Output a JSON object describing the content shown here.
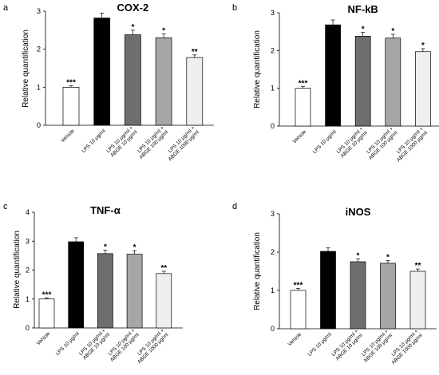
{
  "chart_data": [
    {
      "panel": "a",
      "type": "bar",
      "title": "COX-2",
      "ylabel": "Relative quantification",
      "ylim": [
        0,
        3
      ],
      "yticks": [
        0,
        1,
        2,
        3
      ],
      "categories": [
        [
          "Vehicle"
        ],
        [
          "LPS 10 μg/ml"
        ],
        [
          "LPS 10 μg/ml +",
          "ABGE 10 μg/ml"
        ],
        [
          "LPS 10 μg/ml +",
          "ABGE 100 μg/ml"
        ],
        [
          "LPS 10 μg/ml +",
          "ABGE 1000 μg/ml"
        ]
      ],
      "values": [
        1.0,
        2.82,
        2.38,
        2.3,
        1.78
      ],
      "errors": [
        0.04,
        0.13,
        0.12,
        0.1,
        0.07
      ],
      "significance": [
        "***",
        "",
        "*",
        "*",
        "**"
      ],
      "colors": [
        "#ffffff",
        "#000000",
        "#6e6e6e",
        "#a6a6a6",
        "#efefef"
      ],
      "grid": false
    },
    {
      "panel": "b",
      "type": "bar",
      "title": "NF-kB",
      "ylabel": "Relative quantification",
      "ylim": [
        0,
        3
      ],
      "yticks": [
        0,
        1,
        2,
        3
      ],
      "categories": [
        [
          "Vehicle"
        ],
        [
          "LPS 10 μg/ml"
        ],
        [
          "LPS 10 μg/ml +",
          "ABGE 10 μg/ml"
        ],
        [
          "LPS 10 μg/ml +",
          "ABGE 100 μg/ml"
        ],
        [
          "LPS 10 μg/ml +",
          "ABGE 1000 μg/ml"
        ]
      ],
      "values": [
        1.0,
        2.68,
        2.38,
        2.33,
        1.97
      ],
      "errors": [
        0.05,
        0.13,
        0.1,
        0.1,
        0.08
      ],
      "significance": [
        "***",
        "",
        "*",
        "*",
        "*"
      ],
      "colors": [
        "#ffffff",
        "#000000",
        "#6e6e6e",
        "#a6a6a6",
        "#efefef"
      ],
      "grid": false
    },
    {
      "panel": "c",
      "type": "bar",
      "title": "TNF-α",
      "ylabel": "Relative quantification",
      "ylim": [
        0,
        4
      ],
      "yticks": [
        0,
        1,
        2,
        3,
        4
      ],
      "categories": [
        [
          "Vehicle"
        ],
        [
          "LPS 10 μg/ml"
        ],
        [
          "LPS 10 μg/ml +",
          "ABGE 10 μg/ml"
        ],
        [
          "LPS 10 μg/ml +",
          "ABGE 100 μg/ml"
        ],
        [
          "LPS 10 μg/ml +",
          "ABGE 1000 μg/ml"
        ]
      ],
      "values": [
        1.0,
        2.98,
        2.57,
        2.55,
        1.88
      ],
      "errors": [
        0.04,
        0.14,
        0.12,
        0.12,
        0.08
      ],
      "significance": [
        "***",
        "",
        "*",
        "*",
        "**"
      ],
      "colors": [
        "#ffffff",
        "#000000",
        "#6e6e6e",
        "#a6a6a6",
        "#efefef"
      ],
      "grid": false
    },
    {
      "panel": "d",
      "type": "bar",
      "title": "iNOS",
      "ylabel": "Relative quantification",
      "ylim": [
        0,
        3
      ],
      "yticks": [
        0,
        1,
        2,
        3
      ],
      "categories": [
        [
          "Vehicle"
        ],
        [
          "LPS 10 μg/ml"
        ],
        [
          "LPS 10 μg/ml +",
          "ABGE 10 μg/ml"
        ],
        [
          "LPS 10 μg/ml +",
          "ABGE 100 μg/ml"
        ],
        [
          "LPS 10 μg/ml +",
          "ABGE 1000 μg/ml"
        ]
      ],
      "values": [
        1.0,
        2.02,
        1.75,
        1.71,
        1.5
      ],
      "errors": [
        0.05,
        0.09,
        0.07,
        0.07,
        0.06
      ],
      "significance": [
        "***",
        "",
        "*",
        "*",
        "**"
      ],
      "colors": [
        "#ffffff",
        "#000000",
        "#6e6e6e",
        "#a6a6a6",
        "#efefef"
      ],
      "grid": false
    }
  ]
}
